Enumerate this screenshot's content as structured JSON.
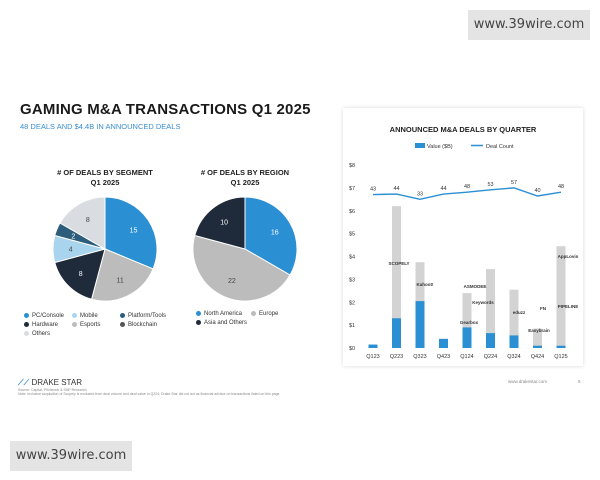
{
  "watermark_top": "www.39wire.com",
  "watermark_bottom": "www.39wire.com",
  "title": "GAMING M&A TRANSACTIONS Q1 2025",
  "subtitle": "48 DEALS AND $4.4B IN ANNOUNCED DEALS",
  "footer": {
    "logo": "DRAKE STAR",
    "source": "Source: Capital, Pitchbook & SNP Research",
    "note": "Note: Inclusive acquisition of Scopely is excluded from deal volume and deal value in Q224; Drake Star did not act as financial advisor on transactions listed on this page",
    "url": "www.drakestar.com",
    "page": "5"
  },
  "colors": {
    "blue": "#2b8fd3",
    "navy": "#1f2a3a",
    "gray": "#bcbcbc",
    "lightblue": "#a9d4ee",
    "teal": "#2c5e7c",
    "lightgray": "#d9dde2",
    "bar_gray": "#d3d3d3"
  },
  "chart_data": [
    {
      "type": "pie",
      "title": "# OF DEALS BY SEGMENT",
      "subtitle": "Q1 2025",
      "slices": [
        {
          "label": "PC/Console",
          "value": 15,
          "color": "#2b8fd3"
        },
        {
          "label": "Esports",
          "value": 11,
          "color": "#bcbcbc"
        },
        {
          "label": "Hardware",
          "value": 8,
          "color": "#1f2a3a"
        },
        {
          "label": "Mobile",
          "value": 4,
          "color": "#a9d4ee"
        },
        {
          "label": "Platform/Tools",
          "value": 2,
          "color": "#2c5e7c"
        },
        {
          "label": "Blockchain",
          "value": 0,
          "color": "#555555"
        },
        {
          "label": "Others",
          "value": 8,
          "color": "#d9dde2"
        }
      ],
      "legend": [
        "PC/Console",
        "Mobile",
        "Platform/Tools",
        "Hardware",
        "Esports",
        "Blockchain",
        "Others"
      ]
    },
    {
      "type": "pie",
      "title": "# OF DEALS BY REGION",
      "subtitle": "Q1 2025",
      "slices": [
        {
          "label": "North America",
          "value": 16,
          "color": "#2b8fd3"
        },
        {
          "label": "Europe",
          "value": 22,
          "color": "#bcbcbc"
        },
        {
          "label": "Asia and Others",
          "value": 10,
          "color": "#1f2a3a"
        }
      ],
      "legend": [
        "North America",
        "Europe",
        "Asia and Others"
      ]
    },
    {
      "type": "bar",
      "title": "ANNOUNCED M&A DEALS BY QUARTER",
      "legend": [
        "Value ($B)",
        "Deal Count"
      ],
      "categories": [
        "Q123",
        "Q223",
        "Q323",
        "Q423",
        "Q124",
        "Q224",
        "Q324",
        "Q424",
        "Q125"
      ],
      "yticks": [
        "$0",
        "$1",
        "$2",
        "$3",
        "$4",
        "$5",
        "$6",
        "$7",
        "$8"
      ],
      "ylim": [
        0,
        8
      ],
      "value_total": [
        0.15,
        6.2,
        3.75,
        0.4,
        2.4,
        3.45,
        2.55,
        0.85,
        4.45
      ],
      "value_highlight": [
        0.15,
        1.3,
        2.05,
        0.4,
        0.9,
        0.65,
        0.55,
        0.1,
        0.1
      ],
      "deal_count": [
        43,
        44,
        33,
        44,
        48,
        53,
        57,
        40,
        48
      ],
      "deal_count_scale": [
        0,
        6.5,
        7.0
      ],
      "deal_names": [
        "SCOPELY",
        "Kahoot!",
        "ASMODEE",
        "Keywords",
        "Gearbox",
        "eduzz",
        "FN",
        "Easybrain",
        "AppLovin",
        "PIPELINE"
      ]
    }
  ]
}
